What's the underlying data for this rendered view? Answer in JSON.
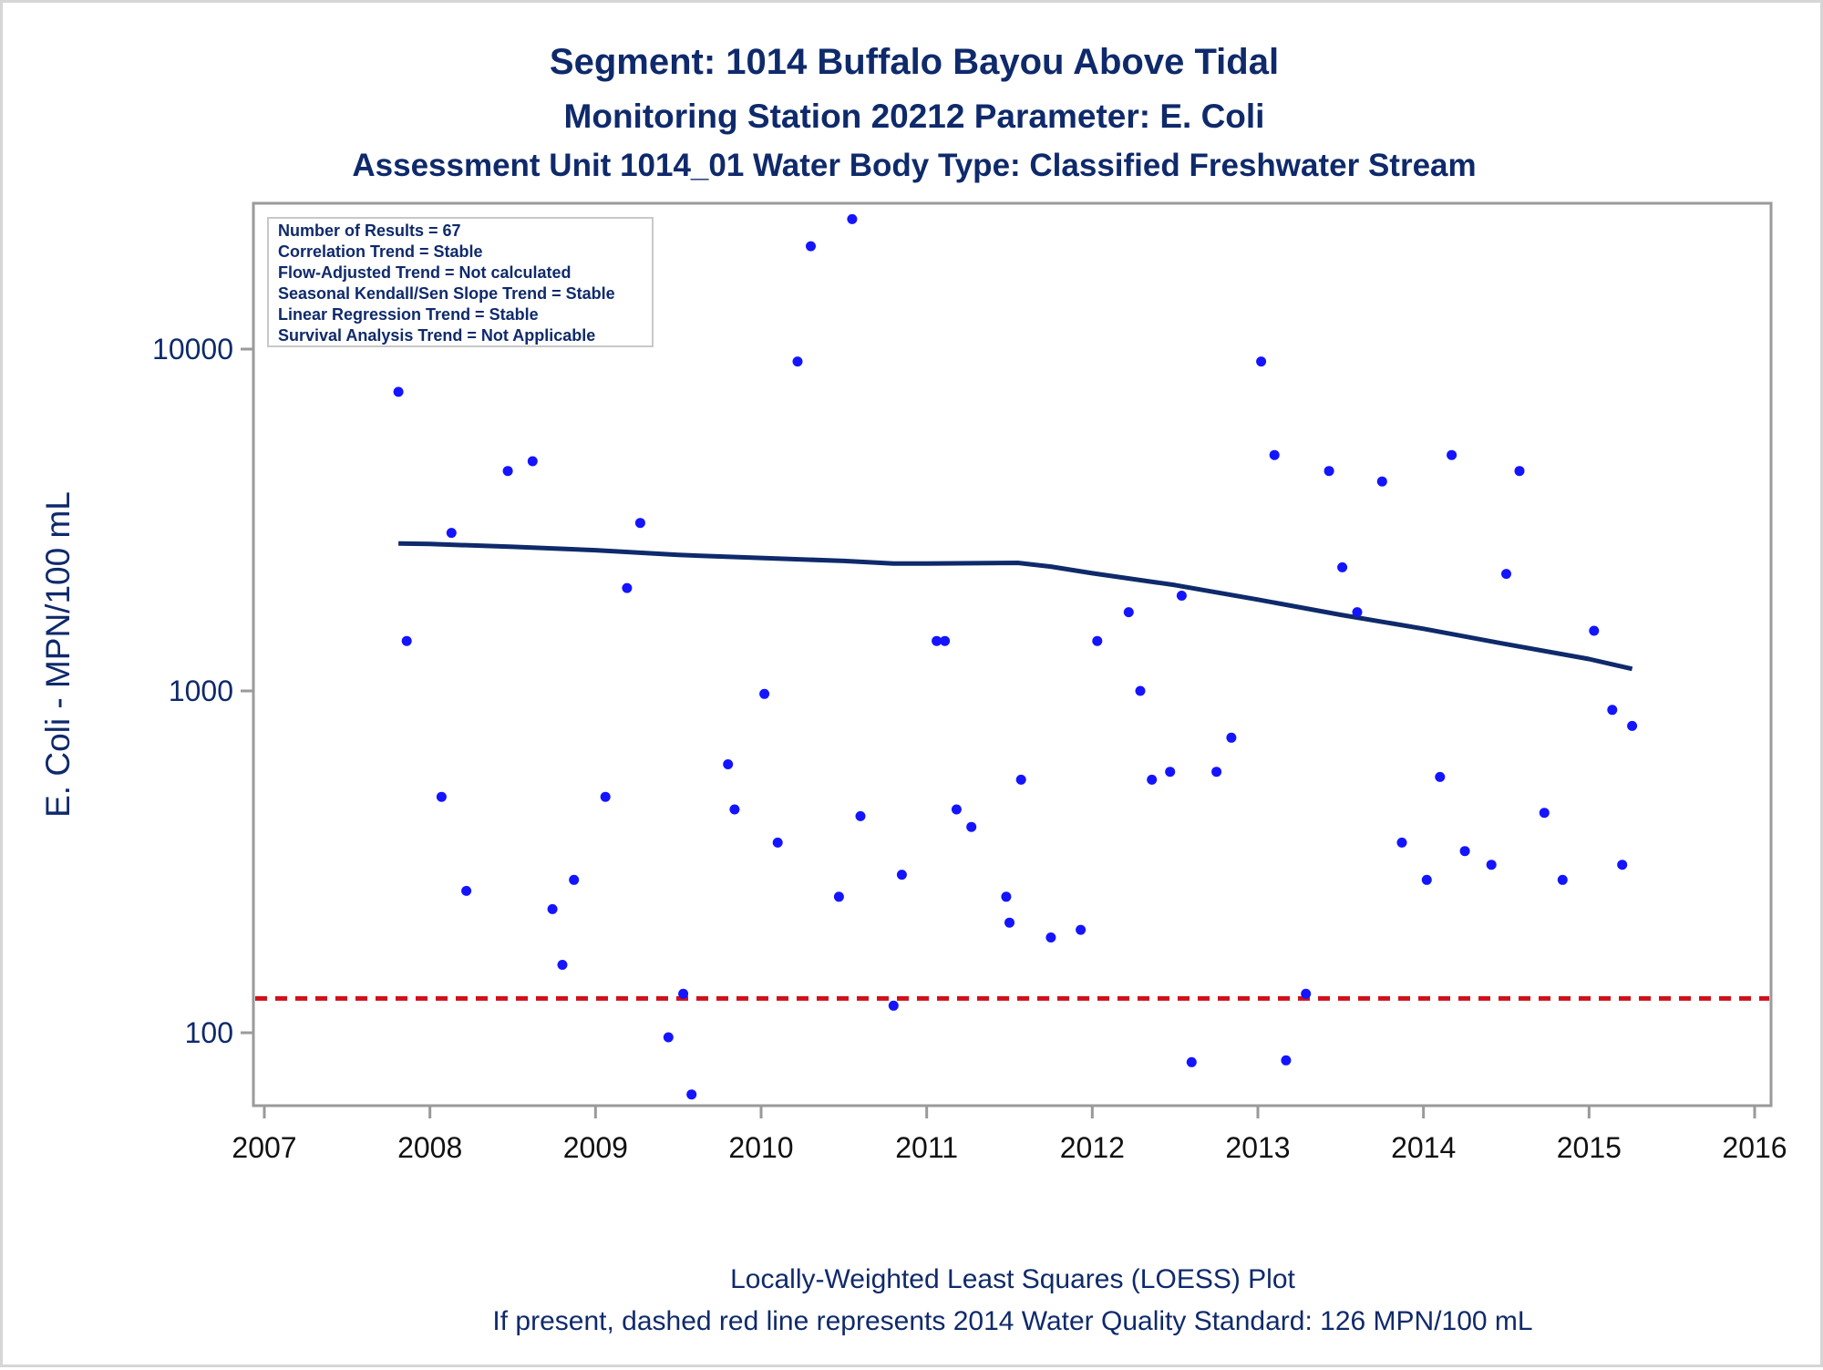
{
  "titles": [
    "Segment: 1014  Buffalo Bayou Above Tidal",
    "Monitoring Station 20212 Parameter: E. Coli",
    "Assessment Unit 1014_01   Water Body Type: Classified Freshwater Stream"
  ],
  "stats": [
    "Number of Results = 67",
    "Correlation Trend = Stable",
    "Flow-Adjusted Trend = Not calculated",
    "Seasonal Kendall/Sen Slope Trend = Stable",
    "Linear Regression Trend = Stable",
    "Survival Analysis Trend = Not Applicable"
  ],
  "footnotes": [
    "Locally-Weighted Least Squares (LOESS) Plot",
    "If present, dashed red line represents 2014 Water Quality Standard: 126 MPN/100 mL"
  ],
  "colors": {
    "text": "#0f2a6b",
    "points": "#1414ff",
    "loess": "#0f2a6b",
    "standard": "#d0101a",
    "frame": "#9a9a9a"
  },
  "chart_data": {
    "type": "scatter",
    "ylabel": "E. Coli - MPN/100 mL",
    "xlabel": "",
    "yscale": "log",
    "xlim": [
      2007,
      2016
    ],
    "ylim": [
      64,
      24000
    ],
    "xticks": [
      2007,
      2008,
      2009,
      2010,
      2011,
      2012,
      2013,
      2014,
      2015,
      2016
    ],
    "xtick_labels": [
      "2007",
      "2008",
      "2009",
      "2010",
      "2011",
      "2012",
      "2013",
      "2014",
      "2015",
      "2016"
    ],
    "yticks": [
      100,
      1000,
      10000
    ],
    "ytick_labels": [
      "100",
      "1000",
      "10000"
    ],
    "grid": false,
    "legend": "none",
    "points": [
      {
        "x": 2007.81,
        "y": 7500
      },
      {
        "x": 2007.86,
        "y": 1400
      },
      {
        "x": 2008.07,
        "y": 490
      },
      {
        "x": 2008.13,
        "y": 2900
      },
      {
        "x": 2008.22,
        "y": 260
      },
      {
        "x": 2008.47,
        "y": 4400
      },
      {
        "x": 2008.62,
        "y": 4700
      },
      {
        "x": 2008.74,
        "y": 230
      },
      {
        "x": 2008.8,
        "y": 158
      },
      {
        "x": 2008.87,
        "y": 280
      },
      {
        "x": 2009.06,
        "y": 490
      },
      {
        "x": 2009.19,
        "y": 2000
      },
      {
        "x": 2009.27,
        "y": 3100
      },
      {
        "x": 2009.44,
        "y": 97
      },
      {
        "x": 2009.53,
        "y": 130
      },
      {
        "x": 2009.58,
        "y": 66
      },
      {
        "x": 2009.8,
        "y": 610
      },
      {
        "x": 2009.84,
        "y": 450
      },
      {
        "x": 2010.02,
        "y": 980
      },
      {
        "x": 2010.1,
        "y": 360
      },
      {
        "x": 2010.22,
        "y": 9200
      },
      {
        "x": 2010.3,
        "y": 20000
      },
      {
        "x": 2010.47,
        "y": 250
      },
      {
        "x": 2010.55,
        "y": 24000
      },
      {
        "x": 2010.6,
        "y": 430
      },
      {
        "x": 2010.8,
        "y": 120
      },
      {
        "x": 2010.85,
        "y": 290
      },
      {
        "x": 2011.06,
        "y": 1400
      },
      {
        "x": 2011.11,
        "y": 1400
      },
      {
        "x": 2011.18,
        "y": 450
      },
      {
        "x": 2011.27,
        "y": 400
      },
      {
        "x": 2011.48,
        "y": 250
      },
      {
        "x": 2011.5,
        "y": 210
      },
      {
        "x": 2011.57,
        "y": 550
      },
      {
        "x": 2011.75,
        "y": 190
      },
      {
        "x": 2011.93,
        "y": 200
      },
      {
        "x": 2012.03,
        "y": 1400
      },
      {
        "x": 2012.22,
        "y": 1700
      },
      {
        "x": 2012.29,
        "y": 1000
      },
      {
        "x": 2012.36,
        "y": 550
      },
      {
        "x": 2012.47,
        "y": 580
      },
      {
        "x": 2012.54,
        "y": 1900
      },
      {
        "x": 2012.6,
        "y": 82
      },
      {
        "x": 2012.75,
        "y": 580
      },
      {
        "x": 2012.84,
        "y": 730
      },
      {
        "x": 2013.02,
        "y": 9200
      },
      {
        "x": 2013.1,
        "y": 4900
      },
      {
        "x": 2013.17,
        "y": 83
      },
      {
        "x": 2013.29,
        "y": 130
      },
      {
        "x": 2013.43,
        "y": 4400
      },
      {
        "x": 2013.51,
        "y": 2300
      },
      {
        "x": 2013.6,
        "y": 1700
      },
      {
        "x": 2013.75,
        "y": 4100
      },
      {
        "x": 2013.87,
        "y": 360
      },
      {
        "x": 2014.02,
        "y": 280
      },
      {
        "x": 2014.1,
        "y": 560
      },
      {
        "x": 2014.17,
        "y": 4900
      },
      {
        "x": 2014.25,
        "y": 340
      },
      {
        "x": 2014.41,
        "y": 310
      },
      {
        "x": 2014.5,
        "y": 2200
      },
      {
        "x": 2014.58,
        "y": 4400
      },
      {
        "x": 2014.73,
        "y": 440
      },
      {
        "x": 2014.84,
        "y": 280
      },
      {
        "x": 2015.03,
        "y": 1500
      },
      {
        "x": 2015.14,
        "y": 880
      },
      {
        "x": 2015.2,
        "y": 310
      },
      {
        "x": 2015.26,
        "y": 790
      }
    ],
    "loess": [
      {
        "x": 2007.81,
        "y": 2700
      },
      {
        "x": 2008.0,
        "y": 2690
      },
      {
        "x": 2008.5,
        "y": 2640
      },
      {
        "x": 2009.0,
        "y": 2580
      },
      {
        "x": 2009.5,
        "y": 2500
      },
      {
        "x": 2010.0,
        "y": 2450
      },
      {
        "x": 2010.5,
        "y": 2400
      },
      {
        "x": 2010.8,
        "y": 2360
      },
      {
        "x": 2011.0,
        "y": 2360
      },
      {
        "x": 2011.55,
        "y": 2370
      },
      {
        "x": 2011.75,
        "y": 2310
      },
      {
        "x": 2012.0,
        "y": 2210
      },
      {
        "x": 2012.5,
        "y": 2040
      },
      {
        "x": 2013.0,
        "y": 1850
      },
      {
        "x": 2013.5,
        "y": 1670
      },
      {
        "x": 2014.0,
        "y": 1520
      },
      {
        "x": 2014.5,
        "y": 1370
      },
      {
        "x": 2015.0,
        "y": 1240
      },
      {
        "x": 2015.26,
        "y": 1160
      }
    ],
    "standard_line": {
      "y": 126
    }
  }
}
